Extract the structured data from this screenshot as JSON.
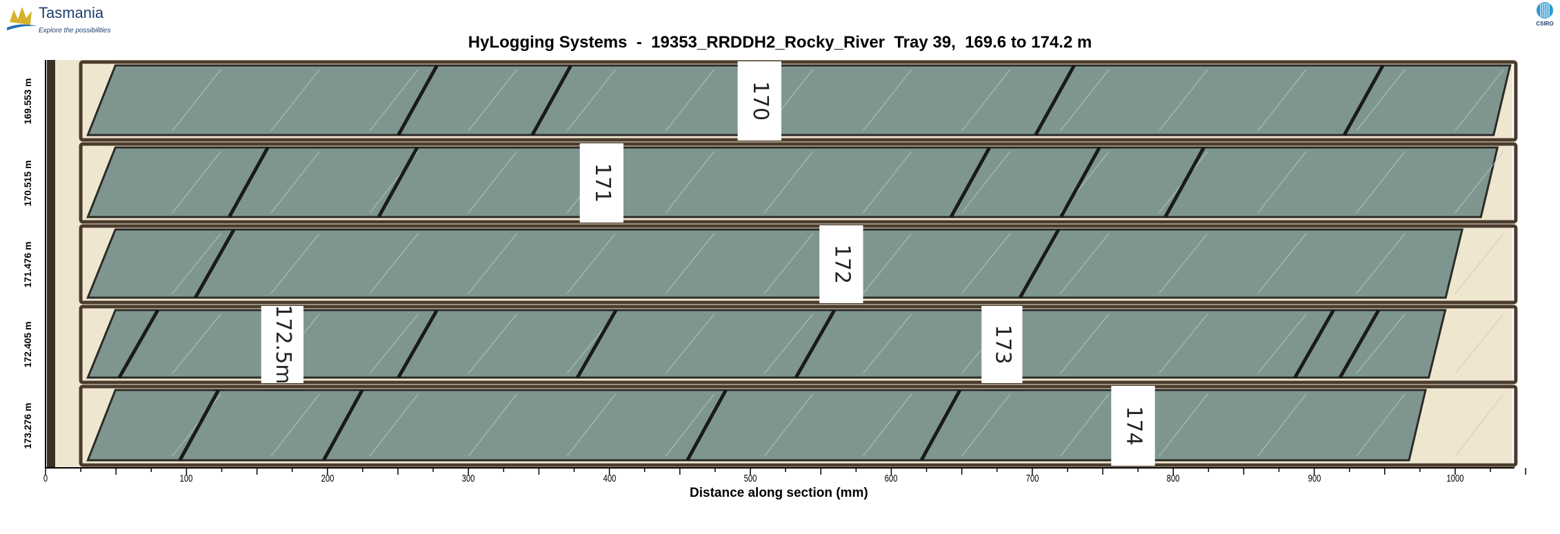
{
  "header": {
    "logo_left": {
      "name": "Tasmania",
      "tagline": "Explore the possibilities"
    },
    "logo_right": {
      "name": "CSIRO"
    },
    "title": "HyLogging Systems  -  19353_RRDDH2_Rocky_River  Tray 39,  169.6 to 174.2 m"
  },
  "rows": [
    {
      "depth_label": "169.553 m",
      "markers": [
        "170"
      ]
    },
    {
      "depth_label": "170.515 m",
      "markers": [
        "171"
      ]
    },
    {
      "depth_label": "171.476 m",
      "markers": [
        "172"
      ]
    },
    {
      "depth_label": "172.405 m",
      "markers": [
        "172.5m",
        "173"
      ]
    },
    {
      "depth_label": "173.276 m",
      "markers": [
        "174"
      ]
    }
  ],
  "x_axis": {
    "label": "Distance along section (mm)",
    "ticks": [
      "0",
      "100",
      "200",
      "300",
      "400",
      "500",
      "600",
      "700",
      "800",
      "900",
      "1000"
    ],
    "range": [
      0,
      1050
    ],
    "minor_step": 25
  },
  "colors": {
    "core": "#7f9690",
    "tray": "#efe6cf",
    "tray_edge": "#4a3b2c",
    "marker_block": "#ffffff"
  }
}
